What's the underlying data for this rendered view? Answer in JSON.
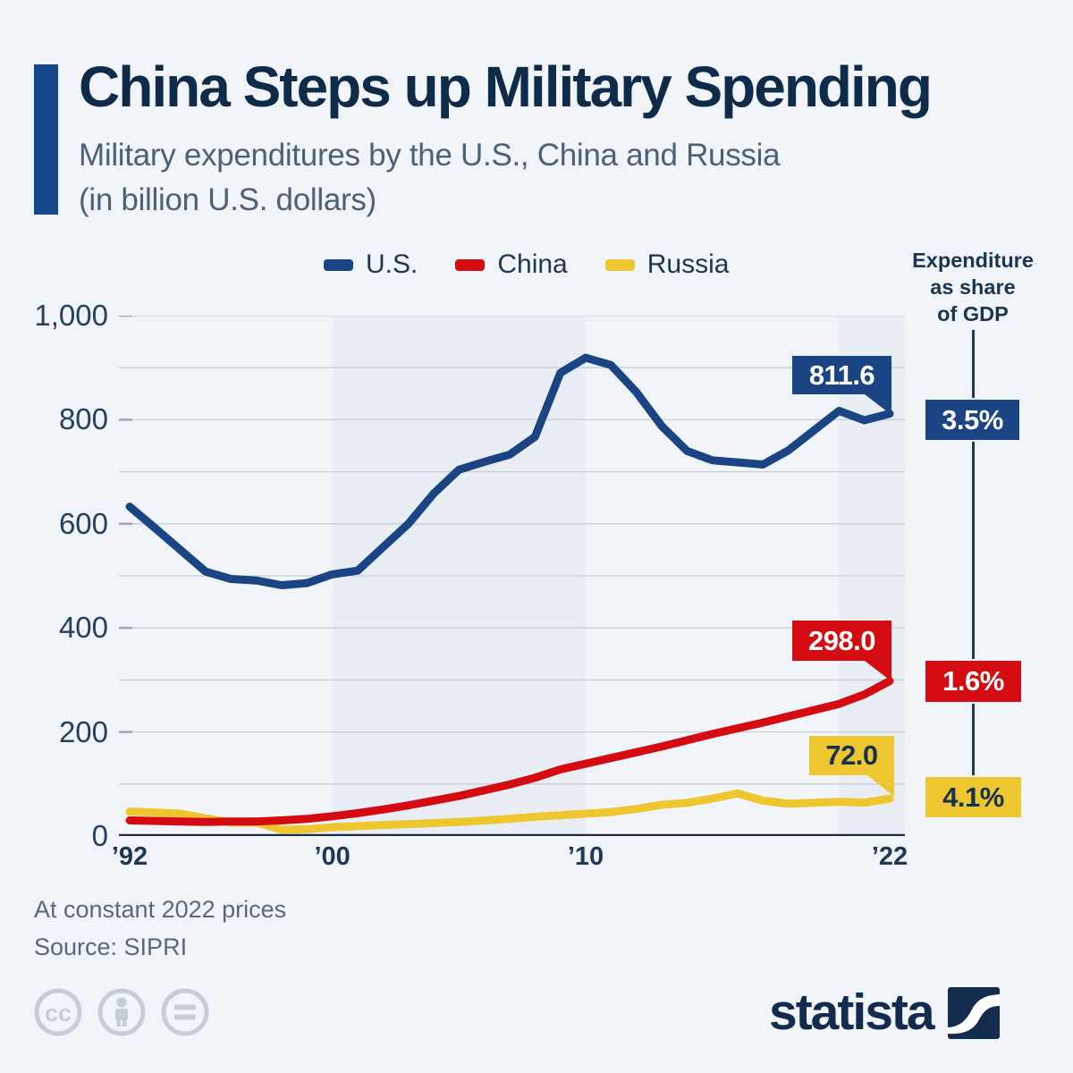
{
  "header": {
    "title": "China Steps up Military Spending",
    "subtitle_line1": "Military expenditures by the U.S., China and Russia",
    "subtitle_line2": "(in billion U.S. dollars)"
  },
  "gdp_note": {
    "line1": "Expenditure",
    "line2": "as share",
    "line3": "of GDP"
  },
  "palette": {
    "background": "#f1f5fa",
    "band": "#e9eef5",
    "gridline": "#c7cdd7",
    "axis": "#1b2c42",
    "us_blue": "#1a4483",
    "china_red": "#d40b10",
    "russia_yellow": "#eec62f",
    "title_navy": "#0f2b4a",
    "subtitle_gray": "#4c6076",
    "footer_gray": "#57697c",
    "icon_gray": "#c5ced8"
  },
  "chart_data": {
    "type": "line",
    "title": "China Steps up Military Spending",
    "unit": "billion U.S. dollars (constant 2022 prices)",
    "ylim": [
      0,
      1000
    ],
    "gridline_step": 100,
    "grid": true,
    "legend_position": "top",
    "shaded_bands": [
      [
        2000,
        2010
      ],
      [
        2020,
        2022.6
      ]
    ],
    "x": [
      1992,
      1993,
      1994,
      1995,
      1996,
      1997,
      1998,
      1999,
      2000,
      2001,
      2002,
      2003,
      2004,
      2005,
      2006,
      2007,
      2008,
      2009,
      2010,
      2011,
      2012,
      2013,
      2014,
      2015,
      2016,
      2017,
      2018,
      2019,
      2020,
      2021,
      2022
    ],
    "x_ticks": [
      {
        "label": "’92",
        "year": 1992
      },
      {
        "label": "’00",
        "year": 2000
      },
      {
        "label": "’10",
        "year": 2010
      },
      {
        "label": "’22",
        "year": 2022
      }
    ],
    "y_ticks": [
      {
        "label": "0",
        "value": 0
      },
      {
        "label": "200",
        "value": 200
      },
      {
        "label": "400",
        "value": 400
      },
      {
        "label": "600",
        "value": 600
      },
      {
        "label": "800",
        "value": 800
      },
      {
        "label": "1,000",
        "value": 1000
      }
    ],
    "series": [
      {
        "name": "U.S.",
        "color": "#1a4483",
        "end_label": "811.6",
        "gdp_share_label": "3.5%",
        "values": [
          633,
          592,
          550,
          508,
          494,
          491,
          482,
          486,
          503,
          510,
          555,
          600,
          658,
          704,
          719,
          733,
          767,
          890,
          919,
          905,
          853,
          788,
          740,
          722,
          718,
          714,
          741,
          779,
          817,
          799,
          811.6
        ]
      },
      {
        "name": "China",
        "color": "#d40b10",
        "end_label": "298.0",
        "gdp_share_label": "1.6%",
        "values": [
          30,
          29,
          28,
          27,
          28,
          28,
          30,
          33,
          38,
          44,
          51,
          59,
          68,
          77,
          88,
          99,
          112,
          128,
          139,
          150,
          161,
          172,
          184,
          196,
          207,
          218,
          230,
          242,
          254,
          272,
          298
        ]
      },
      {
        "name": "Russia",
        "color": "#eec62f",
        "end_label": "72.0",
        "gdp_share_label": "4.1%",
        "values": [
          47,
          45,
          43,
          34,
          26,
          26,
          12,
          13,
          17,
          19,
          21,
          23,
          25,
          27,
          30,
          33,
          37,
          40,
          43,
          46,
          52,
          60,
          64,
          72,
          82,
          68,
          62,
          64,
          66,
          64,
          72
        ]
      }
    ]
  },
  "footer": {
    "note": "At constant 2022 prices",
    "source": "Source: SIPRI"
  },
  "branding": {
    "logo_text": "statista"
  }
}
